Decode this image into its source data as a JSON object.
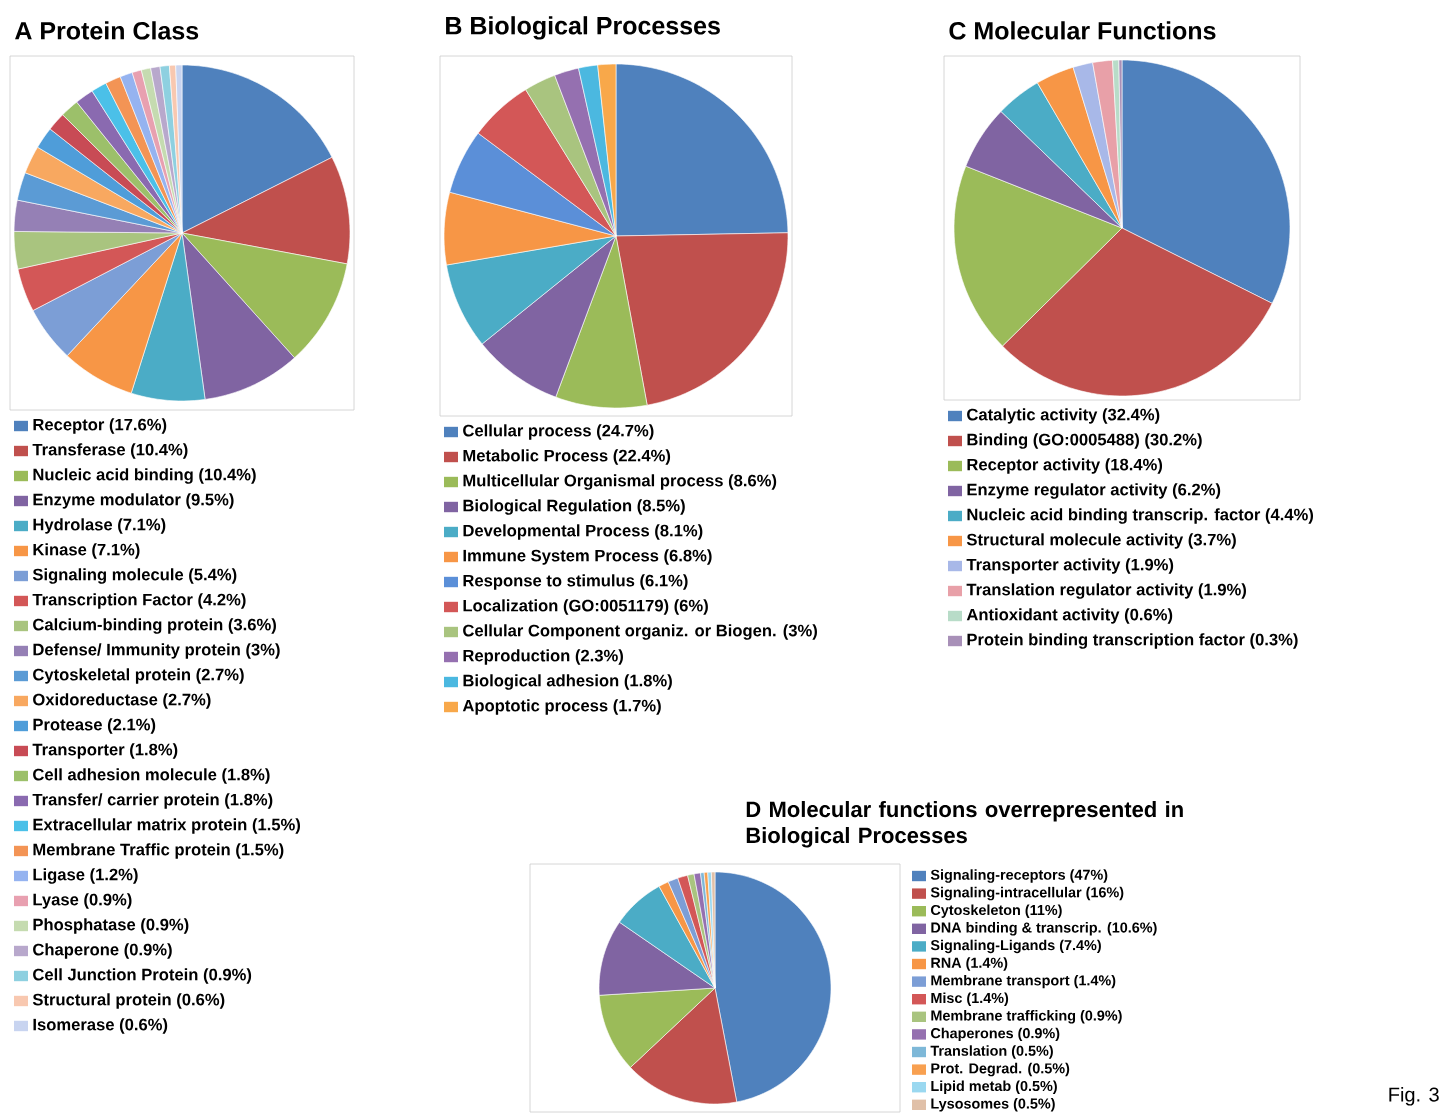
{
  "chart_data": [
    {
      "type": "pie",
      "title": "A Protein Class",
      "legend": "bottom",
      "categories": [
        "Receptor (17.6%)",
        "Transferase (10.4%)",
        "Nucleic acid binding (10.4%)",
        "Enzyme modulator (9.5%)",
        "Hydrolase (7.1%)",
        "Kinase (7.1%)",
        "Signaling molecule (5.4%)",
        "Transcription Factor (4.2%)",
        "Calcium-binding protein (3.6%)",
        "Defense/ Immunity protein (3%)",
        "Cytoskeletal protein (2.7%)",
        "Oxidoreductase (2.7%)",
        "Protease (2.1%)",
        "Transporter (1.8%)",
        "Cell adhesion molecule (1.8%)",
        "Transfer/ carrier protein (1.8%)",
        "Extracellular matrix protein (1.5%)",
        "Membrane Traffic protein (1.5%)",
        "Ligase (1.2%)",
        "Lyase (0.9%)",
        "Phosphatase (0.9%)",
        "Chaperone (0.9%)",
        "Cell Junction Protein (0.9%)",
        "Structural protein (0.6%)",
        "Isomerase (0.6%)"
      ],
      "values": [
        17.6,
        10.4,
        10.4,
        9.5,
        7.1,
        7.1,
        5.4,
        4.2,
        3.6,
        3,
        2.7,
        2.7,
        2.1,
        1.8,
        1.8,
        1.8,
        1.5,
        1.5,
        1.2,
        0.9,
        0.9,
        0.9,
        0.9,
        0.6,
        0.6
      ],
      "colors": [
        "#4f81bd",
        "#c0504d",
        "#9bbb59",
        "#8064a2",
        "#4bacc6",
        "#f79646",
        "#7c9ed6",
        "#d35757",
        "#a9c47f",
        "#9580b5",
        "#5b9bd5",
        "#f8a860",
        "#4f9dd9",
        "#c84b55",
        "#9cc06a",
        "#8a6ab0",
        "#4bc0e8",
        "#f39455",
        "#95b3f0",
        "#e8a0b0",
        "#c5dbb0",
        "#b8a8cc",
        "#8ed0e0",
        "#f8c8b0",
        "#c8d4f0"
      ]
    },
    {
      "type": "pie",
      "title": "B Biological Processes",
      "legend": "bottom",
      "categories": [
        "Cellular process (24.7%)",
        "Metabolic Process (22.4%)",
        "Multicellular Organismal process (8.6%)",
        "Biological Regulation (8.5%)",
        "Developmental Process (8.1%)",
        "Immune System Process (6.8%)",
        "Response to stimulus (6.1%)",
        "Localization (GO:0051179) (6%)",
        "Cellular Component organiz. or Biogen. (3%)",
        "Reproduction (2.3%)",
        "Biological adhesion (1.8%)",
        "Apoptotic process (1.7%)"
      ],
      "values": [
        24.7,
        22.4,
        8.6,
        8.5,
        8.1,
        6.8,
        6.1,
        6,
        3,
        2.3,
        1.8,
        1.7
      ],
      "colors": [
        "#4f81bd",
        "#c0504d",
        "#9bbb59",
        "#8064a2",
        "#4bacc6",
        "#f79646",
        "#5b8fd8",
        "#d35757",
        "#a9c47f",
        "#9570b0",
        "#4bb8e0",
        "#f8a84a"
      ]
    },
    {
      "type": "pie",
      "title": "C Molecular Functions",
      "legend": "bottom",
      "categories": [
        "Catalytic activity (32.4%)",
        "Binding (GO:0005488) (30.2%)",
        "Receptor activity (18.4%)",
        "Enzyme regulator activity (6.2%)",
        "Nucleic acid binding transcrip. factor (4.4%)",
        "Structural molecule activity (3.7%)",
        "Transporter activity (1.9%)",
        "Translation regulator activity (1.9%)",
        "Antioxidant activity (0.6%)",
        "Protein binding transcription factor (0.3%)"
      ],
      "values": [
        32.4,
        30.2,
        18.4,
        6.2,
        4.4,
        3.7,
        1.9,
        1.9,
        0.6,
        0.3
      ],
      "colors": [
        "#4f81bd",
        "#c0504d",
        "#9bbb59",
        "#8064a2",
        "#4bacc6",
        "#f79646",
        "#a8b8e8",
        "#e8a0a8",
        "#b8dcc8",
        "#a890b8"
      ]
    },
    {
      "type": "pie",
      "title": "D Molecular functions overrepresented in Biological Processes",
      "legend": "right",
      "annotations": [
        "Fig. 3"
      ],
      "categories": [
        "Signaling-receptors (47%)",
        "Signaling-intracellular (16%)",
        "Cytoskeleton (11%)",
        "DNA binding & transcrip. (10.6%)",
        "Signaling-Ligands (7.4%)",
        "RNA (1.4%)",
        "Membrane transport (1.4%)",
        "Misc (1.4%)",
        "Membrane trafficking (0.9%)",
        "Chaperones (0.9%)",
        "Translation (0.5%)",
        "Prot. Degrad. (0.5%)",
        "Lipid metab (0.5%)",
        "Lysosomes (0.5%)"
      ],
      "values": [
        47,
        16,
        11,
        10.6,
        7.4,
        1.4,
        1.4,
        1.4,
        0.9,
        0.9,
        0.5,
        0.5,
        0.5,
        0.5
      ],
      "colors": [
        "#4f81bd",
        "#c0504d",
        "#9bbb59",
        "#8064a2",
        "#4bacc6",
        "#f79646",
        "#7c9ed6",
        "#d35757",
        "#a9c47f",
        "#9570b0",
        "#7eb8d8",
        "#f8a050",
        "#9ad8f0",
        "#e0c0a8"
      ]
    }
  ]
}
